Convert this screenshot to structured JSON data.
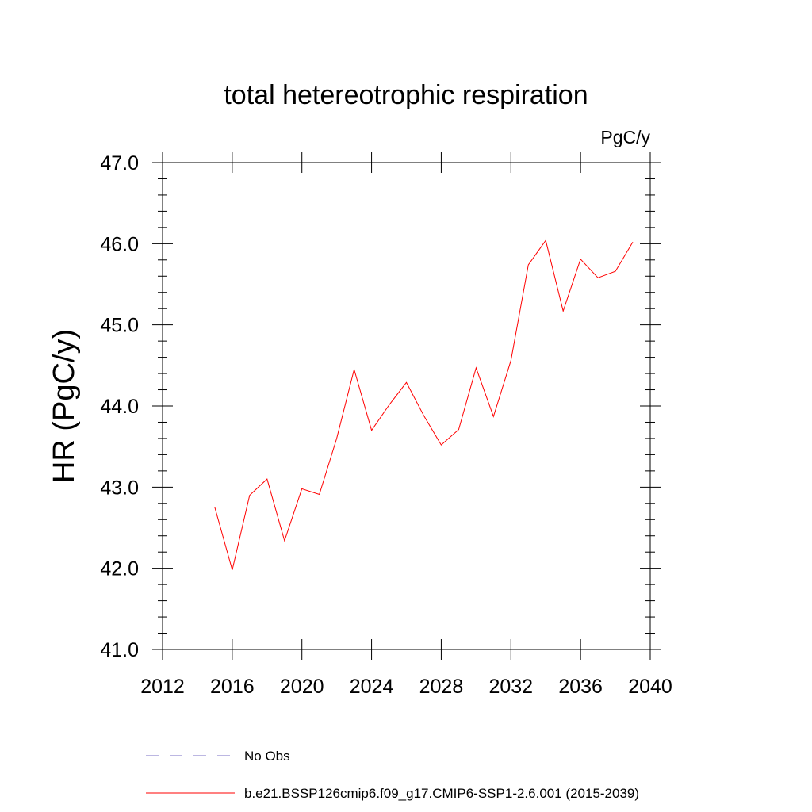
{
  "chart_data": {
    "type": "line",
    "title": "total hetereotrophic respiration",
    "units_label": "PgC/y",
    "xlabel": "",
    "ylabel": "HR  (PgC/y)",
    "xlim": [
      2012,
      2040
    ],
    "ylim": [
      41.0,
      47.0
    ],
    "x_ticks": [
      2012,
      2016,
      2020,
      2024,
      2028,
      2032,
      2036,
      2040
    ],
    "x_tick_labels": [
      "2012",
      "2016",
      "2020",
      "2024",
      "2028",
      "2032",
      "2036",
      "2040"
    ],
    "y_ticks": [
      41.0,
      42.0,
      43.0,
      44.0,
      45.0,
      46.0,
      47.0
    ],
    "y_tick_labels": [
      "41.0",
      "42.0",
      "43.0",
      "44.0",
      "45.0",
      "46.0",
      "47.0"
    ],
    "grid": false,
    "legend_position": "bottom",
    "series": [
      {
        "name": "b.e21.BSSP126cmip6.f09_g17.CMIP6-SSP1-2.6.001 (2015-2039)",
        "color": "#ff0000",
        "style": "solid",
        "x": [
          2015,
          2016,
          2017,
          2018,
          2019,
          2020,
          2021,
          2022,
          2023,
          2024,
          2025,
          2026,
          2027,
          2028,
          2029,
          2030,
          2031,
          2032,
          2033,
          2034,
          2035,
          2036,
          2037,
          2038,
          2039
        ],
        "y": [
          42.75,
          41.98,
          42.9,
          43.1,
          42.34,
          42.98,
          42.91,
          43.6,
          44.45,
          43.7,
          44.01,
          44.29,
          43.88,
          43.52,
          43.71,
          44.47,
          43.87,
          44.56,
          45.74,
          46.04,
          45.17,
          45.81,
          45.58,
          45.66,
          46.02
        ]
      },
      {
        "name": "No Obs",
        "color": "#7a6fc4",
        "style": "dashed",
        "x": [],
        "y": []
      }
    ]
  }
}
